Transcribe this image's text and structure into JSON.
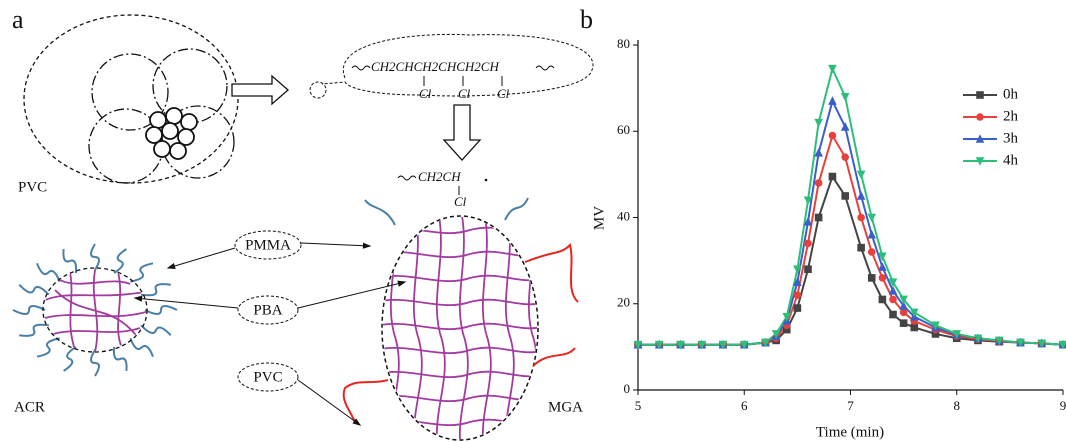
{
  "diagram": {
    "panel_label": "a",
    "pvc_particle_label": "PVC",
    "chain_formula": "CH2CHCH2CHCH2CH",
    "chain_substituents": [
      "Cl",
      "Cl",
      "Cl"
    ],
    "radical_formula": "CH2CH",
    "radical_substituent": "Cl",
    "particle_labels": [
      "ACR",
      "MGA"
    ],
    "component_labels": [
      "PMMA",
      "PBA",
      "PVC"
    ]
  },
  "chart_data": {
    "type": "line",
    "panel_label": "b",
    "x_label": "Time (min)",
    "y_label": "MV",
    "x": [
      5.0,
      5.2,
      5.4,
      5.6,
      5.8,
      6.0,
      6.2,
      6.3,
      6.4,
      6.5,
      6.6,
      6.7,
      6.83,
      6.95,
      7.1,
      7.2,
      7.3,
      7.4,
      7.5,
      7.6,
      7.8,
      8.0,
      8.2,
      8.4,
      8.6,
      8.8,
      9.0
    ],
    "series": [
      {
        "name": "0h",
        "color": "#444444",
        "marker": "square",
        "values": [
          10.5,
          10.5,
          10.5,
          10.5,
          10.5,
          10.5,
          11,
          11.5,
          14,
          19,
          28,
          40,
          49.5,
          45,
          33,
          26,
          21,
          17.5,
          15.5,
          14.5,
          13,
          12,
          11.5,
          11.2,
          11,
          10.8,
          10.5
        ]
      },
      {
        "name": "2h",
        "color": "#e8403a",
        "marker": "circle",
        "values": [
          10.5,
          10.5,
          10.5,
          10.5,
          10.5,
          10.5,
          11,
          12,
          15,
          22,
          34,
          48,
          59,
          54,
          40,
          32,
          26,
          21,
          18,
          16,
          14,
          12.5,
          11.8,
          11.3,
          11,
          10.8,
          10.5
        ]
      },
      {
        "name": "3h",
        "color": "#3a5fc8",
        "marker": "triangle-up",
        "values": [
          10.5,
          10.5,
          10.5,
          10.5,
          10.5,
          10.5,
          11,
          12.5,
          16,
          25,
          39,
          55,
          67,
          61,
          45,
          36,
          28.5,
          23,
          19.5,
          17,
          14.5,
          12.8,
          12,
          11.4,
          11,
          10.8,
          10.5
        ]
      },
      {
        "name": "4h",
        "color": "#2dbe7a",
        "marker": "triangle-down",
        "values": [
          10.5,
          10.5,
          10.5,
          10.5,
          10.5,
          10.5,
          11,
          13,
          17,
          28,
          44,
          62,
          74.5,
          68,
          50,
          40,
          31,
          25,
          21,
          18,
          15,
          13,
          12,
          11.5,
          11,
          10.8,
          10.5
        ]
      }
    ],
    "xlim": [
      5,
      9
    ],
    "ylim": [
      0,
      80
    ],
    "xticks": [
      5,
      6,
      7,
      8,
      9
    ],
    "yticks": [
      0,
      20,
      40,
      60,
      80
    ],
    "grid": false,
    "legend": "upper right"
  }
}
